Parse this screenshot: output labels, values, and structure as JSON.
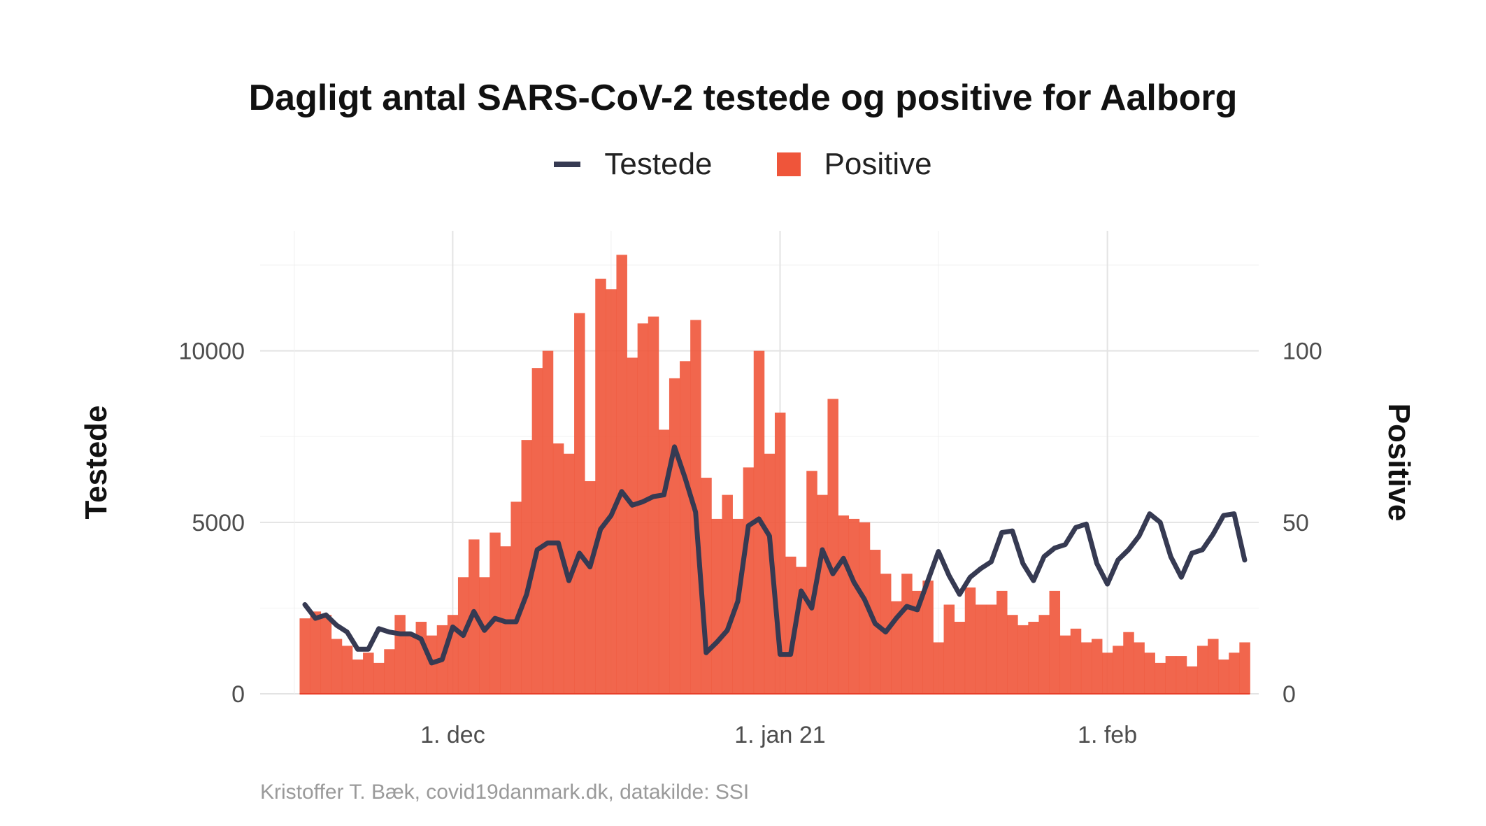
{
  "chart_data": {
    "type": "bar+line",
    "title": "Dagligt antal SARS-CoV-2 testede og positive for Aalborg",
    "ylabel_left": "Testede",
    "ylabel_right": "Positive",
    "xlabel": "",
    "x_start": "2020-11-17",
    "x_tick_labels": [
      {
        "date": "2020-12-01",
        "label": "1. dec"
      },
      {
        "date": "2021-01-01",
        "label": "1. jan 21"
      },
      {
        "date": "2021-02-01",
        "label": "1. feb"
      }
    ],
    "y_left_ticks": [
      "0",
      "5000",
      "10000"
    ],
    "y_left_lim": [
      0,
      13500
    ],
    "y_right_ticks": [
      "0",
      "50",
      "100"
    ],
    "y_right_lim": [
      0,
      135
    ],
    "grid": true,
    "legend_position": "top",
    "series": [
      {
        "name": "Testede",
        "type": "line",
        "axis": "left",
        "color": "#363a52",
        "values": [
          2600,
          2200,
          2300,
          2000,
          1800,
          1300,
          1300,
          1900,
          1800,
          1750,
          1750,
          1600,
          900,
          1000,
          1950,
          1700,
          2400,
          1850,
          2200,
          2100,
          2100,
          2900,
          4200,
          4400,
          4400,
          3300,
          4100,
          3700,
          4800,
          5200,
          5900,
          5500,
          5600,
          5750,
          5800,
          7200,
          6300,
          5300,
          1200,
          1500,
          1850,
          2700,
          4900,
          5100,
          4600,
          1150,
          1150,
          3000,
          2500,
          4200,
          3500,
          3950,
          3250,
          2750,
          2050,
          1800,
          2200,
          2550,
          2450,
          3300,
          4150,
          3450,
          2900,
          3400,
          3650,
          3850,
          4700,
          4750,
          3800,
          3300,
          4000,
          4250,
          4350,
          4850,
          4950,
          3800,
          3200,
          3900,
          4200,
          4600,
          5250,
          5000,
          4000,
          3400,
          4100,
          4200,
          4650,
          5200,
          5250,
          3900
        ]
      },
      {
        "name": "Positive",
        "type": "bar",
        "axis": "right",
        "color": "#ef553a",
        "values": [
          22,
          24,
          23,
          16,
          14,
          10,
          12,
          9,
          13,
          23,
          17,
          21,
          17,
          20,
          23,
          34,
          45,
          34,
          47,
          43,
          56,
          74,
          95,
          100,
          73,
          70,
          111,
          62,
          121,
          118,
          128,
          98,
          108,
          110,
          77,
          92,
          97,
          109,
          63,
          51,
          58,
          51,
          66,
          100,
          70,
          82,
          40,
          37,
          65,
          58,
          86,
          52,
          51,
          50,
          42,
          35,
          27,
          35,
          30,
          33,
          15,
          26,
          21,
          31,
          26,
          26,
          30,
          23,
          20,
          21,
          23,
          30,
          17,
          19,
          15,
          16,
          12,
          14,
          18,
          15,
          12,
          9,
          11,
          11,
          8,
          14,
          16,
          10,
          12,
          15
        ]
      }
    ]
  },
  "caption": "Kristoffer T. Bæk, covid19danmark.dk, datakilde: SSI"
}
